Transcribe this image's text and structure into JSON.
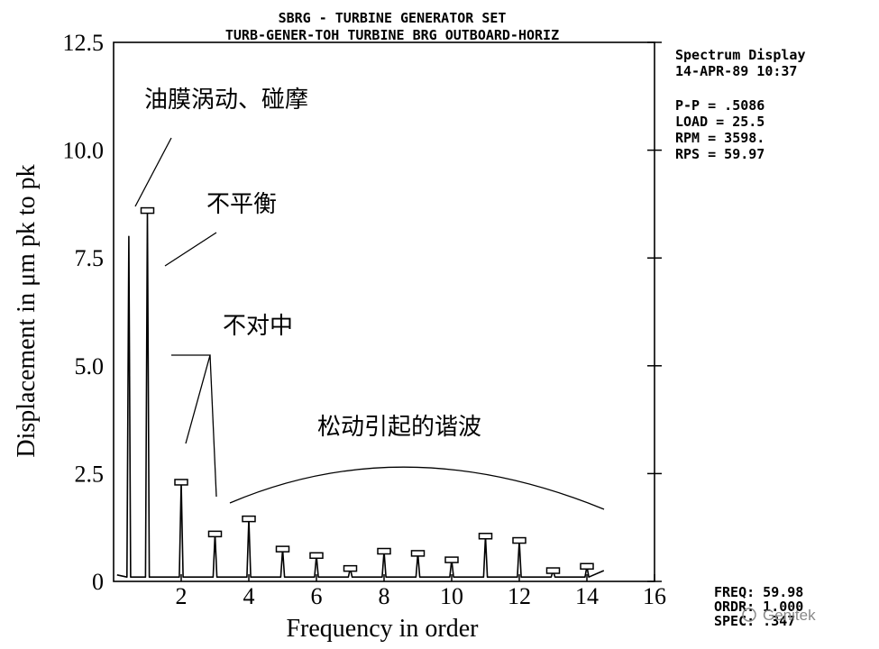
{
  "header": {
    "title": "SBRG - TURBINE GENERATOR SET",
    "subtitle": "TURB-GENER-TOH      TURBINE BRG OUTBOARD-HORIZ"
  },
  "info": {
    "display": "Spectrum Display",
    "date": "14-APR-89  10:37",
    "pp": "P-P =  .5086",
    "load": "LOAD =  25.5",
    "rpm": "RPM =  3598.",
    "rps": "RPS =  59.97"
  },
  "footer": {
    "freq": "FREQ:   59.98",
    "order": "ORDR:  1.000",
    "spec": "SPEC:   .347",
    "watermark": "Genitek"
  },
  "annotations": {
    "oil_whirl": "油膜涡动、碰摩",
    "unbalance": "不平衡",
    "misalignment": "不对中",
    "looseness": "松动引起的谐波"
  },
  "chart_data": {
    "type": "line",
    "title": "SBRG - TURBINE GENERATOR SET",
    "xlabel": "Frequency in order",
    "ylabel": "Displacement  in μm pk to pk",
    "xlim": [
      0,
      16
    ],
    "ylim": [
      0,
      12.5
    ],
    "x_ticks": [
      "2",
      "4",
      "6",
      "8",
      "10",
      "12",
      "14",
      "16"
    ],
    "y_ticks": [
      "0",
      "2.5",
      "5.0",
      "7.5",
      "10.0",
      "12.5"
    ],
    "grid": false,
    "peaks": [
      {
        "x": 0.45,
        "y": 8.0
      },
      {
        "x": 1.0,
        "y": 8.6
      },
      {
        "x": 2.0,
        "y": 2.3
      },
      {
        "x": 3.0,
        "y": 1.1
      },
      {
        "x": 4.0,
        "y": 1.45
      },
      {
        "x": 5.0,
        "y": 0.75
      },
      {
        "x": 6.0,
        "y": 0.6
      },
      {
        "x": 7.0,
        "y": 0.3
      },
      {
        "x": 8.0,
        "y": 0.7
      },
      {
        "x": 9.0,
        "y": 0.65
      },
      {
        "x": 10.0,
        "y": 0.5
      },
      {
        "x": 11.0,
        "y": 1.05
      },
      {
        "x": 12.0,
        "y": 0.95
      },
      {
        "x": 13.0,
        "y": 0.25
      },
      {
        "x": 14.0,
        "y": 0.35
      }
    ]
  }
}
